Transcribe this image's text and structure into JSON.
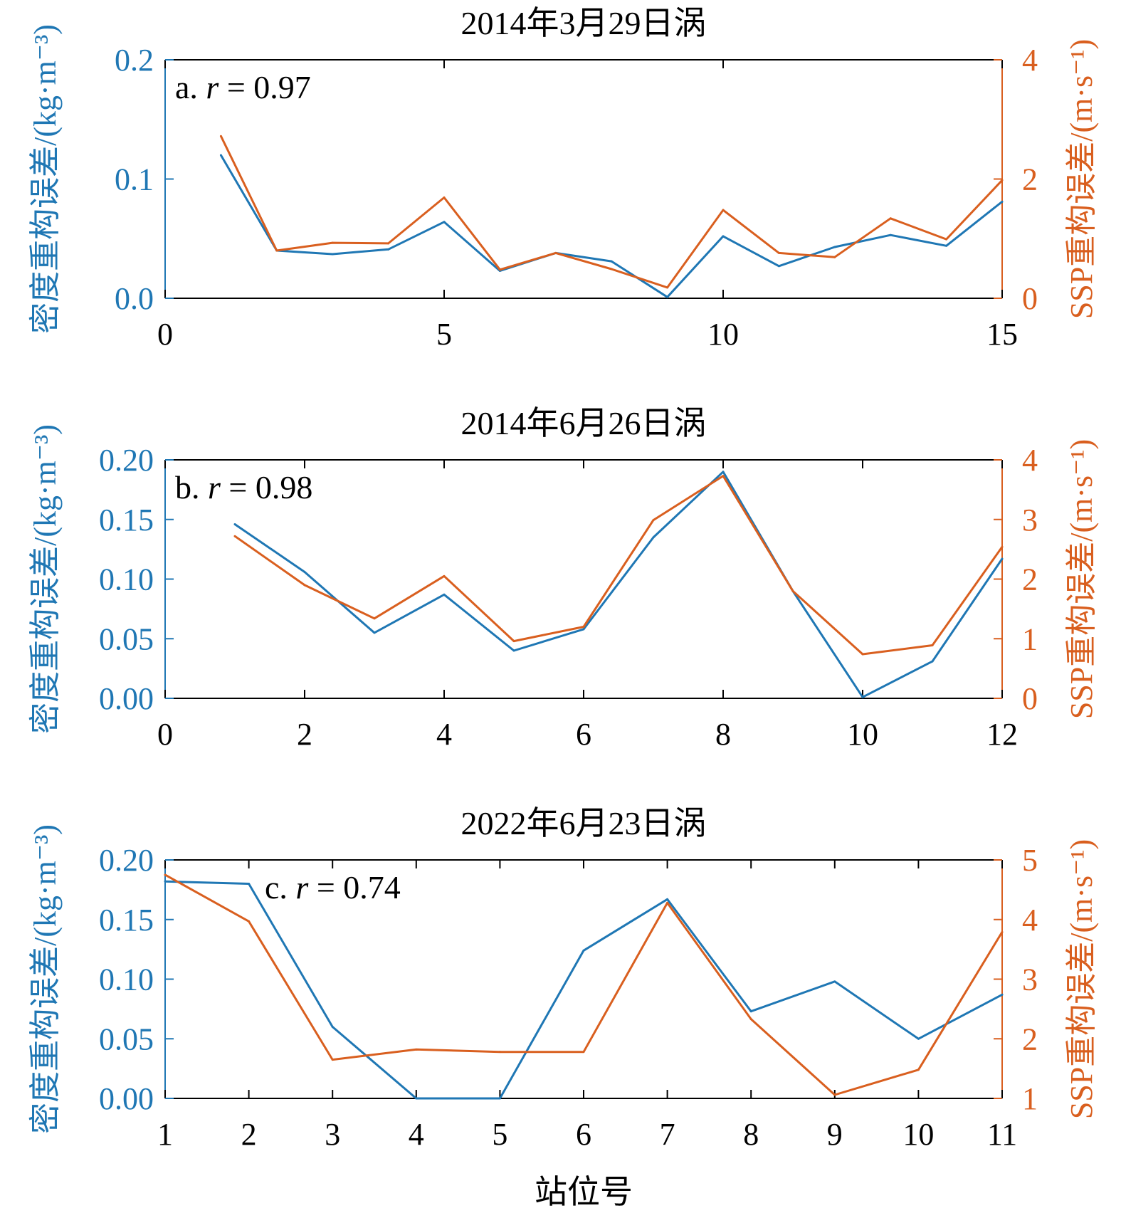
{
  "colors": {
    "density": "#1f77b4",
    "ssp": "#d95f1f",
    "axis": "#000000"
  },
  "xlabel": "站位号",
  "chart_data": [
    {
      "type": "line",
      "title": "2014年3月29日涡",
      "annotation": {
        "prefix": "a. ",
        "r_symbol": "r",
        "r_text": " = 0.97"
      },
      "x": [
        1,
        2,
        3,
        4,
        5,
        6,
        7,
        8,
        9,
        10,
        11,
        12,
        13,
        14,
        15
      ],
      "xlim": [
        0,
        15
      ],
      "xticks": [
        0,
        5,
        10,
        15
      ],
      "xtick_labels": [
        "0",
        "5",
        "10",
        "15"
      ],
      "ylabel_left": "密度重构误差/(kg·m⁻³)",
      "ylabel_right": "SSP重构误差/(m·s⁻¹)",
      "ylim_left": [
        0,
        0.2
      ],
      "ylim_right": [
        0,
        4
      ],
      "yticks_left": [
        0,
        0.1,
        0.2
      ],
      "ytick_labels_left": [
        "0.0",
        "0.1",
        "0.2"
      ],
      "yticks_right": [
        0,
        2,
        4
      ],
      "ytick_labels_right": [
        "0",
        "2",
        "4"
      ],
      "series": [
        {
          "name": "密度重构误差",
          "axis": "left",
          "values": [
            0.12,
            0.04,
            0.037,
            0.041,
            0.064,
            0.023,
            0.038,
            0.031,
            0.001,
            0.052,
            0.027,
            0.043,
            0.053,
            0.044,
            0.081
          ]
        },
        {
          "name": "SSP重构误差",
          "axis": "right",
          "values": [
            2.72,
            0.8,
            0.93,
            0.92,
            1.69,
            0.48,
            0.76,
            0.49,
            0.18,
            1.48,
            0.76,
            0.69,
            1.34,
            0.99,
            1.98
          ]
        }
      ]
    },
    {
      "type": "line",
      "title": "2014年6月26日涡",
      "annotation": {
        "prefix": "b. ",
        "r_symbol": "r",
        "r_text": " = 0.98"
      },
      "x": [
        1,
        2,
        3,
        4,
        5,
        6,
        7,
        8,
        9,
        10,
        11,
        12
      ],
      "xlim": [
        0,
        12
      ],
      "xticks": [
        0,
        2,
        4,
        6,
        8,
        10,
        12
      ],
      "xtick_labels": [
        "0",
        "2",
        "4",
        "6",
        "8",
        "10",
        "12"
      ],
      "ylabel_left": "密度重构误差/(kg·m⁻³)",
      "ylabel_right": "SSP重构误差/(m·s⁻¹)",
      "ylim_left": [
        0,
        0.2
      ],
      "ylim_right": [
        0,
        4
      ],
      "yticks_left": [
        0,
        0.05,
        0.1,
        0.15,
        0.2
      ],
      "ytick_labels_left": [
        "0.00",
        "0.05",
        "0.10",
        "0.15",
        "0.20"
      ],
      "yticks_right": [
        0,
        1,
        2,
        3,
        4
      ],
      "ytick_labels_right": [
        "0",
        "1",
        "2",
        "3",
        "4"
      ],
      "series": [
        {
          "name": "密度重构误差",
          "axis": "left",
          "values": [
            0.146,
            0.106,
            0.055,
            0.087,
            0.04,
            0.058,
            0.135,
            0.19,
            0.09,
            0.001,
            0.031,
            0.117
          ]
        },
        {
          "name": "SSP重构误差",
          "axis": "right",
          "values": [
            2.72,
            1.9,
            1.34,
            2.05,
            0.96,
            1.2,
            2.99,
            3.73,
            1.8,
            0.74,
            0.89,
            2.54
          ]
        }
      ]
    },
    {
      "type": "line",
      "title": "2022年6月23日涡",
      "annotation": {
        "prefix": "c. ",
        "r_symbol": "r",
        "r_text": " = 0.74"
      },
      "x": [
        1,
        2,
        3,
        4,
        5,
        6,
        7,
        8,
        9,
        10,
        11
      ],
      "xlim": [
        1,
        11
      ],
      "xticks": [
        1,
        2,
        3,
        4,
        5,
        6,
        7,
        8,
        9,
        10,
        11
      ],
      "xtick_labels": [
        "1",
        "2",
        "3",
        "4",
        "5",
        "6",
        "7",
        "8",
        "9",
        "10",
        "11"
      ],
      "ylabel_left": "密度重构误差/(kg·m⁻³)",
      "ylabel_right": "SSP重构误差/(m·s⁻¹)",
      "ylim_left": [
        0,
        0.2
      ],
      "ylim_right": [
        1,
        5
      ],
      "yticks_left": [
        0,
        0.05,
        0.1,
        0.15,
        0.2
      ],
      "ytick_labels_left": [
        "0.00",
        "0.05",
        "0.10",
        "0.15",
        "0.20"
      ],
      "yticks_right": [
        1,
        2,
        3,
        4,
        5
      ],
      "ytick_labels_right": [
        "1",
        "2",
        "3",
        "4",
        "5"
      ],
      "series": [
        {
          "name": "密度重构误差",
          "axis": "left",
          "values": [
            0.182,
            0.18,
            0.06,
            0.0,
            0.0,
            0.124,
            0.167,
            0.073,
            0.098,
            0.05,
            0.087
          ]
        },
        {
          "name": "SSP重构误差",
          "axis": "right",
          "values": [
            4.75,
            3.97,
            1.65,
            1.82,
            1.78,
            1.78,
            4.28,
            2.33,
            1.06,
            1.48,
            3.79
          ]
        }
      ]
    }
  ]
}
